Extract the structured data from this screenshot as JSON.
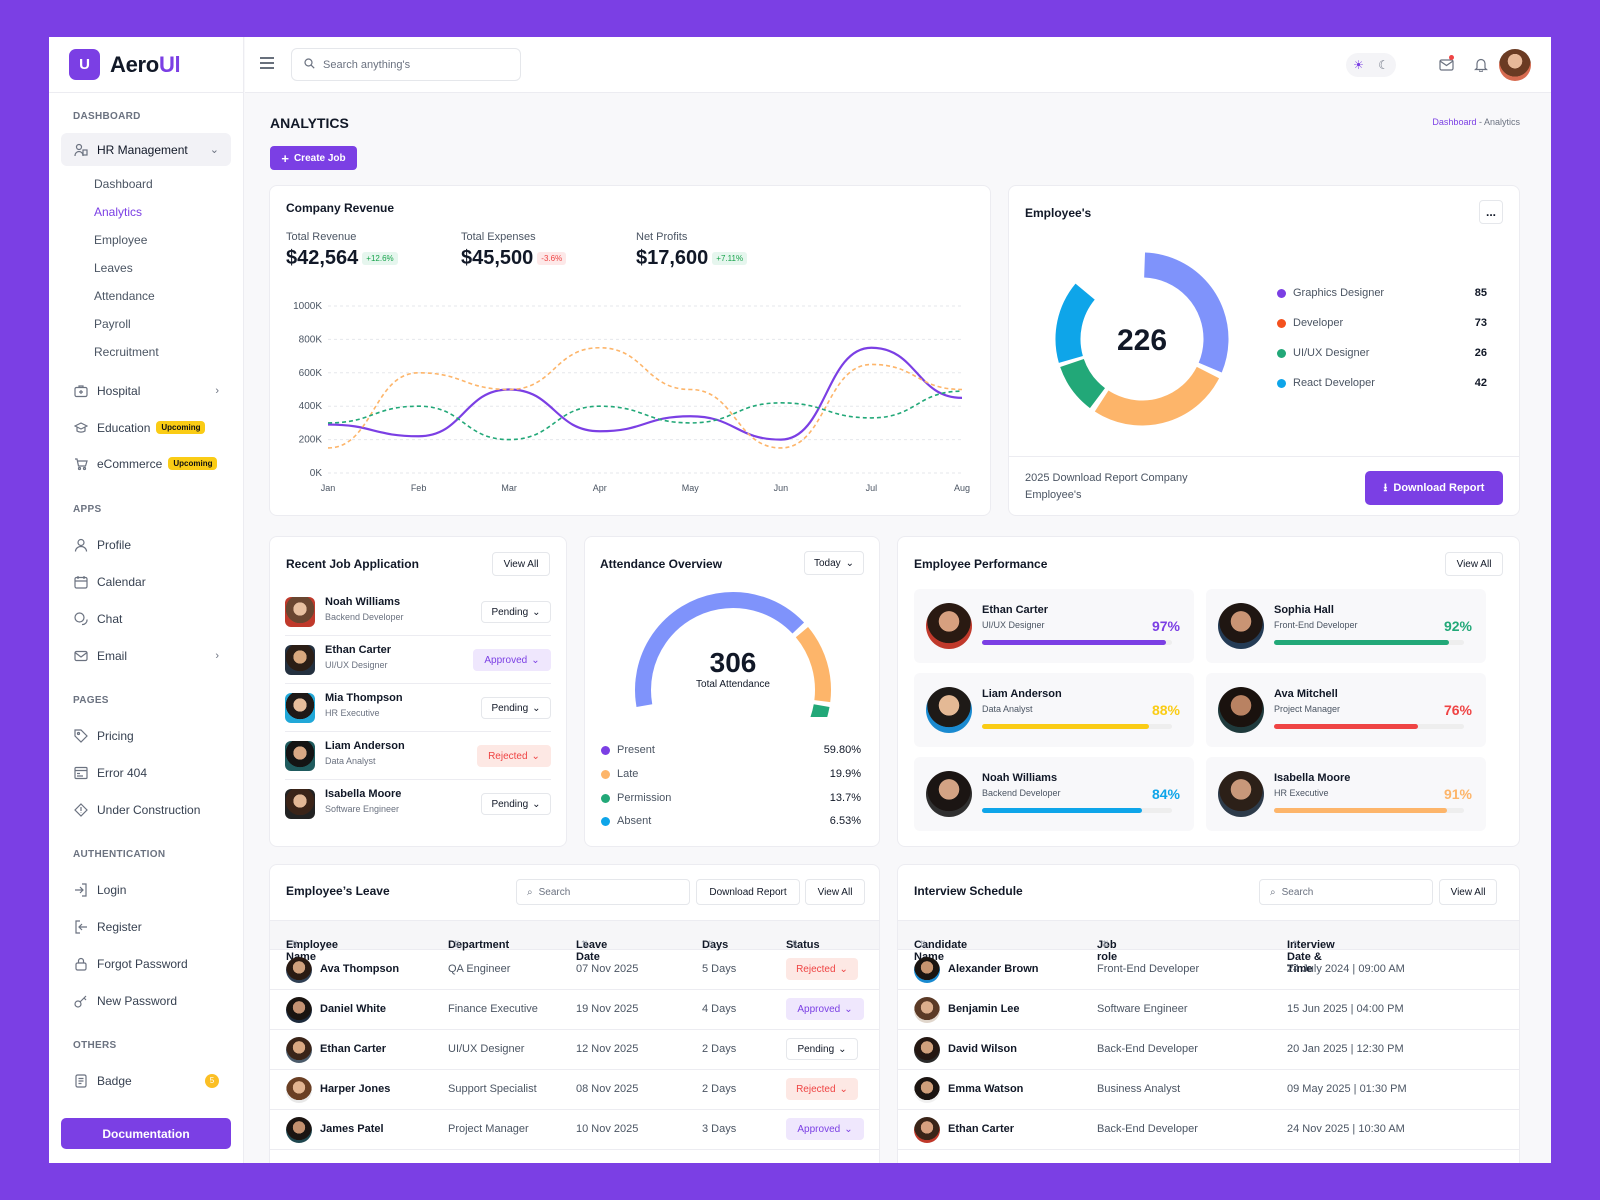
{
  "brand": {
    "name_a": "Aero",
    "name_b": "Ul",
    "mark": "U"
  },
  "sidebar": {
    "sec_dashboard": "DASHBOARD",
    "hr": "HR Management",
    "hr_sub": [
      "Dashboard",
      "Analytics",
      "Employee",
      "Leaves",
      "Attendance",
      "Payroll",
      "Recruitment"
    ],
    "hospital": "Hospital",
    "education": "Education",
    "ecommerce": "eCommerce",
    "upcoming": "Upcoming",
    "sec_apps": "APPS",
    "apps": [
      "Profile",
      "Calendar",
      "Chat",
      "Email"
    ],
    "sec_pages": "PAGES",
    "pages": [
      "Pricing",
      "Error 404",
      "Under Construction"
    ],
    "sec_auth": "AUTHENTICATION",
    "auth": [
      "Login",
      "Register",
      "Forgot Password",
      "New Password"
    ],
    "sec_others": "OTHERS",
    "badge": "Badge",
    "badge_count": "5",
    "doc": "Documentation"
  },
  "topbar": {
    "search_placeholder": "Search anything's"
  },
  "page": {
    "title": "ANALYTICS",
    "crumb_a": "Dashboard",
    "crumb_sep": "-",
    "crumb_b": "Analytics",
    "create": "Create Job"
  },
  "revenue": {
    "title": "Company Revenue",
    "stats": [
      {
        "label": "Total Revenue",
        "value": "$42,564",
        "change": "+12.6%",
        "up": true
      },
      {
        "label": "Total Expenses",
        "value": "$45,500",
        "change": "-3.6%",
        "up": false
      },
      {
        "label": "Net Profits",
        "value": "$17,600",
        "change": "+7.11%",
        "up": true
      }
    ]
  },
  "chart_data": {
    "type": "line",
    "x": [
      "Jan",
      "Feb",
      "Mar",
      "Apr",
      "May",
      "Jun",
      "Jul",
      "Aug"
    ],
    "ylim": [
      0,
      1000
    ],
    "yticks": [
      "0K",
      "200K",
      "400K",
      "600K",
      "800K",
      "1000K"
    ],
    "series": [
      {
        "values": [
          290,
          220,
          500,
          250,
          340,
          200,
          750,
          450
        ],
        "color": "#7b3fe4",
        "dash": false
      },
      {
        "values": [
          150,
          600,
          500,
          750,
          500,
          150,
          650,
          500
        ],
        "color": "#fdb56a",
        "dash": true
      },
      {
        "values": [
          300,
          400,
          200,
          400,
          300,
          420,
          330,
          490
        ],
        "color": "#22a878",
        "dash": true
      }
    ]
  },
  "employees": {
    "title": "Employee's",
    "total": "226",
    "more": "...",
    "legend": [
      {
        "name": "Graphics Designer",
        "n": "85",
        "color": "#7b3fe4"
      },
      {
        "name": "Developer",
        "n": "73",
        "color": "#f4511e"
      },
      {
        "name": "UI/UX Designer",
        "n": "26",
        "color": "#22a878"
      },
      {
        "name": "React Developer",
        "n": "42",
        "color": "#0ea5e9"
      }
    ],
    "footer": "2025 Download Report Company Employee's",
    "download": "Download Report"
  },
  "jobs": {
    "title": "Recent Job Application",
    "view": "View All",
    "rows": [
      {
        "name": "Noah Williams",
        "role": "Backend Developer",
        "status": "Pending"
      },
      {
        "name": "Ethan Carter",
        "role": "UI/UX Designer",
        "status": "Approved"
      },
      {
        "name": "Mia Thompson",
        "role": "HR Executive",
        "status": "Pending"
      },
      {
        "name": "Liam Anderson",
        "role": "Data Analyst",
        "status": "Rejected"
      },
      {
        "name": "Isabella Moore",
        "role": "Software Engineer",
        "status": "Pending"
      }
    ]
  },
  "attendance": {
    "title": "Attendance Overview",
    "filter": "Today",
    "total": "306",
    "label": "Total Attendance",
    "rows": [
      {
        "name": "Present",
        "v": "59.80%",
        "color": "#7b3fe4"
      },
      {
        "name": "Late",
        "v": "19.9%",
        "color": "#fdb56a"
      },
      {
        "name": "Permission",
        "v": "13.7%",
        "color": "#22a878"
      },
      {
        "name": "Absent",
        "v": "6.53%",
        "color": "#0ea5e9"
      }
    ]
  },
  "performance": {
    "title": "Employee Performance",
    "view": "View All",
    "rows": [
      {
        "name": "Ethan Carter",
        "role": "UI/UX Designer",
        "pct": "97%",
        "level": 0.97,
        "color": "#7b3fe4"
      },
      {
        "name": "Sophia Hall",
        "role": "Front-End Developer",
        "pct": "92%",
        "level": 0.92,
        "color": "#22a878"
      },
      {
        "name": "Liam Anderson",
        "role": "Data Analyst",
        "pct": "88%",
        "level": 0.88,
        "color": "#facc15"
      },
      {
        "name": "Ava Mitchell",
        "role": "Project Manager",
        "pct": "76%",
        "level": 0.76,
        "color": "#ef4444"
      },
      {
        "name": "Noah Williams",
        "role": "Backend Developer",
        "pct": "84%",
        "level": 0.84,
        "color": "#0ea5e9"
      },
      {
        "name": "Isabella Moore",
        "role": "HR Executive",
        "pct": "91%",
        "level": 0.91,
        "color": "#fdb56a"
      }
    ]
  },
  "leave": {
    "title": "Employee’s Leave",
    "search": "Search",
    "download": "Download Report",
    "view": "View All",
    "headers": [
      "Employee Name",
      "Department",
      "Leave Date",
      "Days",
      "Status"
    ],
    "rows": [
      {
        "name": "Ava Thompson",
        "dept": "QA Engineer",
        "date": "07 Nov 2025",
        "days": "5 Days",
        "status": "Rejected"
      },
      {
        "name": "Daniel White",
        "dept": "Finance Executive",
        "date": "19 Nov 2025",
        "days": "4 Days",
        "status": "Approved"
      },
      {
        "name": "Ethan Carter",
        "dept": "UI/UX Designer",
        "date": "12 Nov 2025",
        "days": "2 Days",
        "status": "Pending"
      },
      {
        "name": "Harper Jones",
        "dept": "Support Specialist",
        "date": "08 Nov 2025",
        "days": "2 Days",
        "status": "Rejected"
      },
      {
        "name": "James Patel",
        "dept": "Project Manager",
        "date": "10 Nov 2025",
        "days": "3 Days",
        "status": "Approved"
      }
    ]
  },
  "interview": {
    "title": "Interview Schedule",
    "search": "Search",
    "view": "View All",
    "headers": [
      "Candidate Name",
      "Job role",
      "Interview Date & Time"
    ],
    "rows": [
      {
        "name": "Alexander Brown",
        "role": "Front-End Developer",
        "dt": "24 July 2024 | 09:00 AM"
      },
      {
        "name": "Benjamin Lee",
        "role": "Software Engineer",
        "dt": "15 Jun 2025 | 04:00 PM"
      },
      {
        "name": "David Wilson",
        "role": "Back-End Developer",
        "dt": "20 Jan 2025 | 12:30 PM"
      },
      {
        "name": "Emma Watson",
        "role": "Business Analyst",
        "dt": "09 May 2025 | 01:30 PM"
      },
      {
        "name": "Ethan Carter",
        "role": "Back-End Developer",
        "dt": "24 Nov 2025 | 10:30 AM"
      }
    ]
  },
  "colors": {
    "accent": "#7b3fe4"
  }
}
